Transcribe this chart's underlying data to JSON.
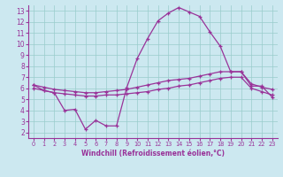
{
  "xlabel": "Windchill (Refroidissement éolien,°C)",
  "bg_color": "#cce8f0",
  "line_color": "#993399",
  "grid_color": "#99cccc",
  "xlim": [
    -0.5,
    23.5
  ],
  "ylim": [
    1.5,
    13.5
  ],
  "xticks": [
    0,
    1,
    2,
    3,
    4,
    5,
    6,
    7,
    8,
    9,
    10,
    11,
    12,
    13,
    14,
    15,
    16,
    17,
    18,
    19,
    20,
    21,
    22,
    23
  ],
  "yticks": [
    2,
    3,
    4,
    5,
    6,
    7,
    8,
    9,
    10,
    11,
    12,
    13
  ],
  "x": [
    0,
    1,
    2,
    3,
    4,
    5,
    6,
    7,
    8,
    9,
    10,
    11,
    12,
    13,
    14,
    15,
    16,
    17,
    18,
    19,
    20,
    21,
    22,
    23
  ],
  "peaked_y": [
    6.3,
    5.8,
    5.6,
    4.0,
    4.1,
    2.3,
    3.1,
    2.6,
    2.6,
    6.1,
    8.7,
    10.5,
    12.1,
    12.8,
    13.3,
    12.9,
    12.5,
    11.1,
    9.8,
    7.5,
    7.5,
    6.2,
    6.2,
    5.2
  ],
  "upper_y": [
    6.3,
    6.1,
    5.9,
    5.8,
    5.7,
    5.6,
    5.6,
    5.7,
    5.8,
    5.9,
    6.1,
    6.3,
    6.5,
    6.7,
    6.8,
    6.9,
    7.1,
    7.3,
    7.5,
    7.5,
    7.5,
    6.4,
    6.1,
    5.9
  ],
  "lower_y": [
    6.0,
    5.8,
    5.6,
    5.5,
    5.4,
    5.3,
    5.3,
    5.4,
    5.4,
    5.5,
    5.6,
    5.7,
    5.9,
    6.0,
    6.2,
    6.3,
    6.5,
    6.7,
    6.9,
    7.0,
    7.0,
    6.0,
    5.7,
    5.4
  ]
}
